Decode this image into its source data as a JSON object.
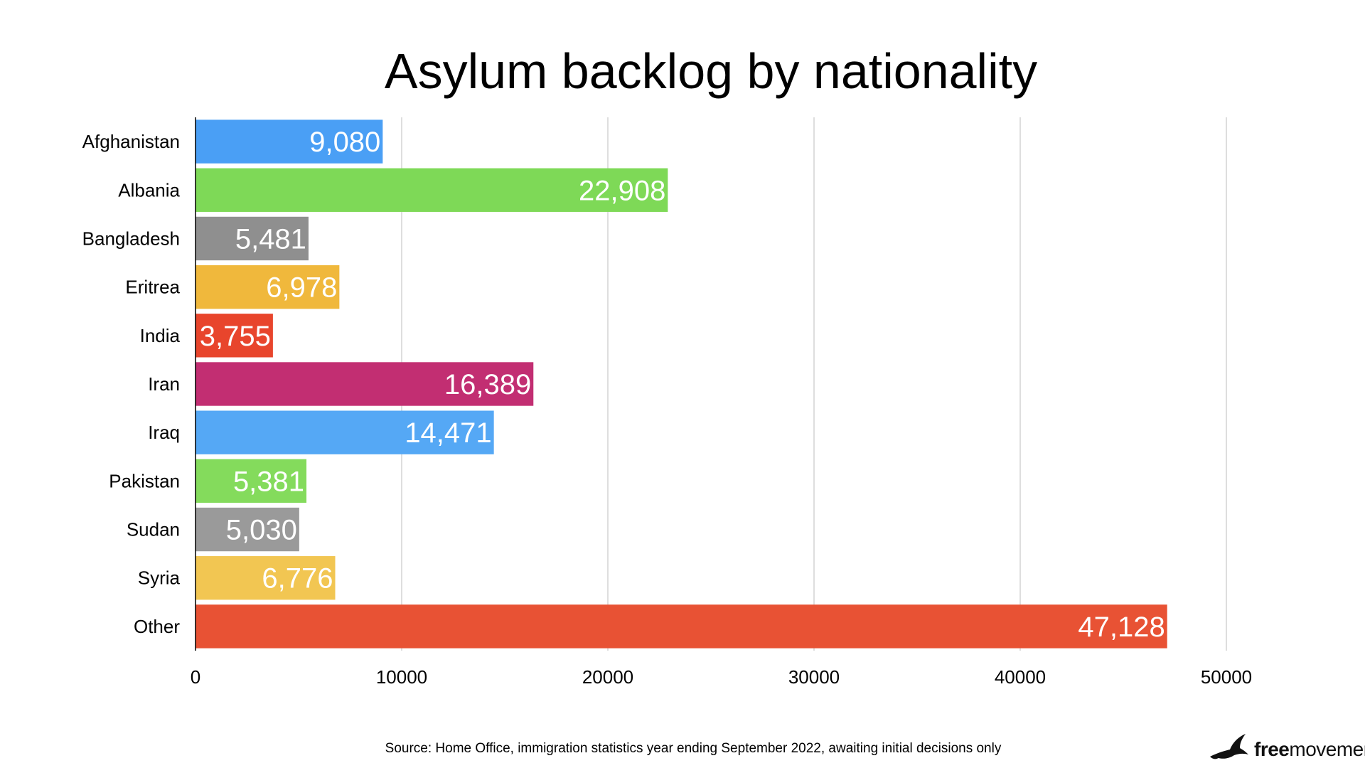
{
  "chart_data": {
    "type": "bar",
    "orientation": "horizontal",
    "title": "Asylum backlog by nationality",
    "categories": [
      "Afghanistan",
      "Albania",
      "Bangladesh",
      "Eritrea",
      "India",
      "Iran",
      "Iraq",
      "Pakistan",
      "Sudan",
      "Syria",
      "Other"
    ],
    "values": [
      9080,
      22908,
      5481,
      6978,
      3755,
      16389,
      14471,
      5381,
      5030,
      6776,
      47128
    ],
    "value_labels": [
      "9,080",
      "22,908",
      "5,481",
      "6,978",
      "3,755",
      "16,389",
      "14,471",
      "5,381",
      "5,030",
      "6,776",
      "47,128"
    ],
    "colors": [
      "#4a9ff5",
      "#7ed957",
      "#8f8f8f",
      "#f0b83c",
      "#e8452c",
      "#c22e72",
      "#55a8f5",
      "#84db5c",
      "#9a9a9a",
      "#f2c652",
      "#e85234"
    ],
    "xlim": [
      0,
      50000
    ],
    "xticks": [
      0,
      10000,
      20000,
      30000,
      40000,
      50000
    ],
    "xtick_labels": [
      "0",
      "10000",
      "20000",
      "30000",
      "40000",
      "50000"
    ],
    "grid": true,
    "legend": "none"
  },
  "source": "Source: Home Office, immigration statistics year ending September 2022, awaiting initial decisions only",
  "logo": {
    "icon": "bird-icon",
    "text_bold": "free",
    "text_regular": "movement"
  }
}
